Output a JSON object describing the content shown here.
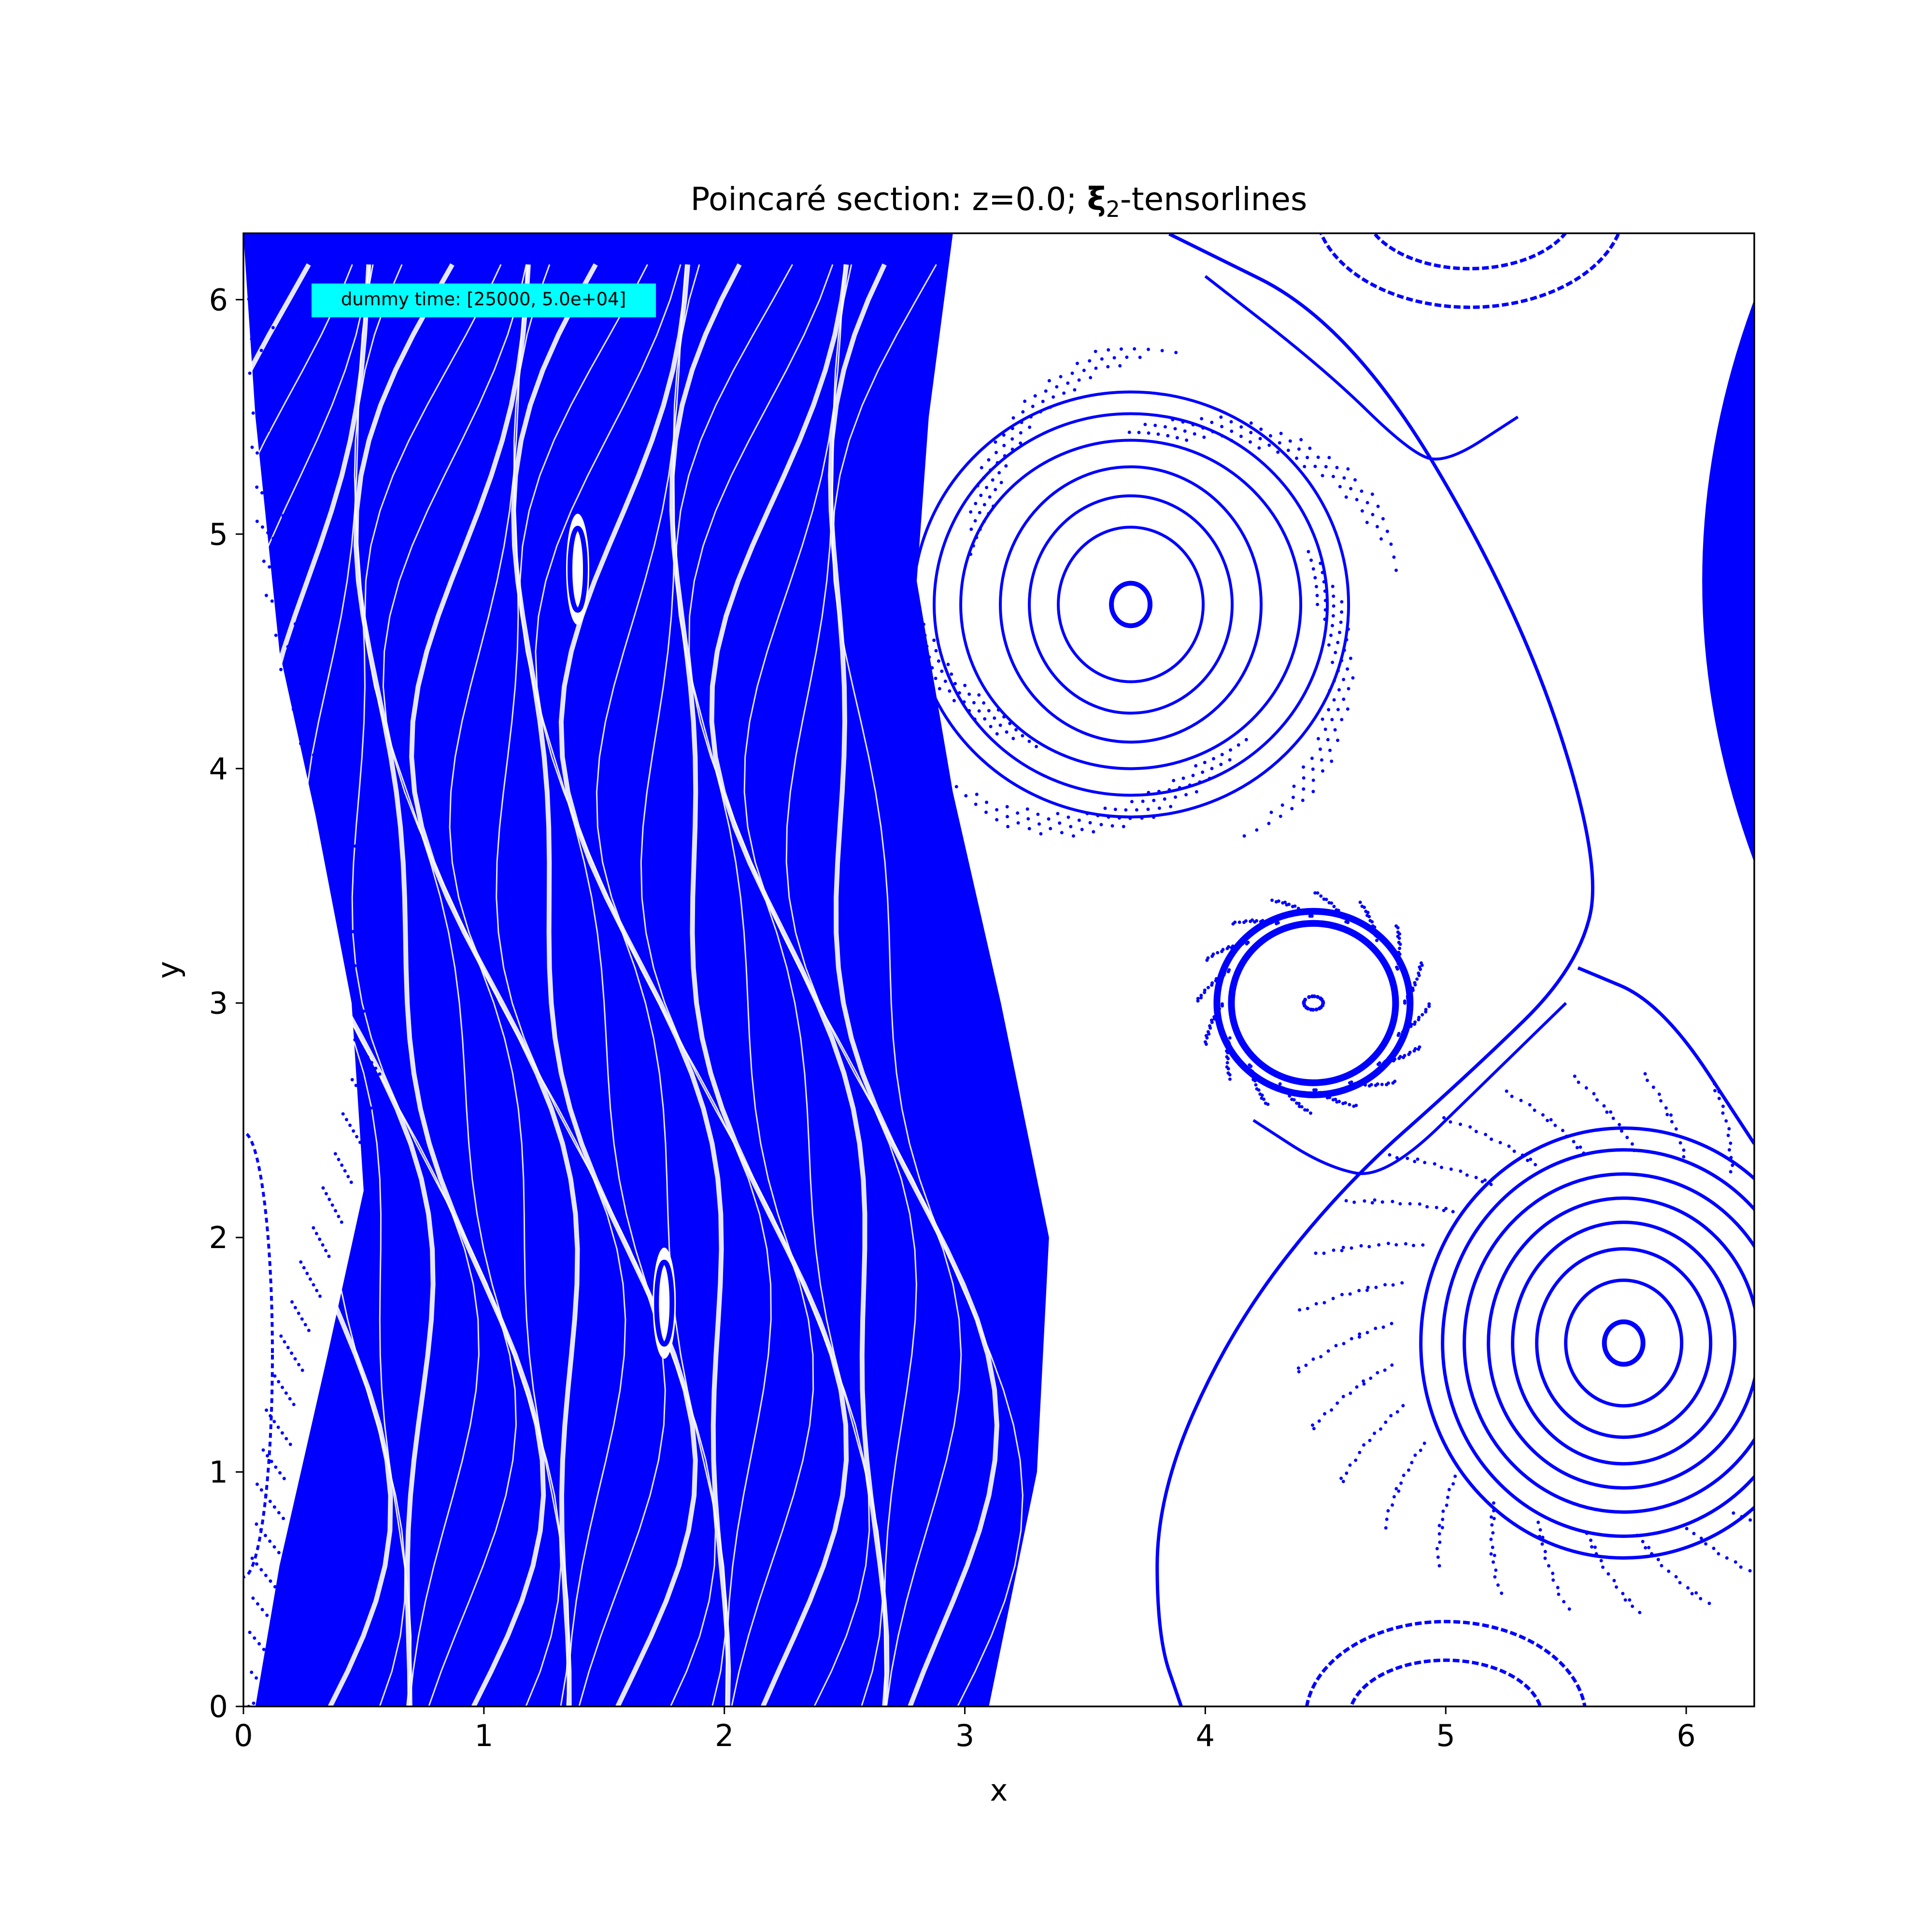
{
  "figure": {
    "title_prefix": "Poincaré section: z=0.0; ",
    "title_symbol": "ξ",
    "title_subscript": "2",
    "title_suffix": "-tensorlines",
    "xlabel": "x",
    "ylabel": "y",
    "annotation": "dummy time: [25000, 5.0e+04]",
    "annotation_bg": "#00ffff",
    "point_color": "#0000ff"
  },
  "chart_data": {
    "type": "scatter",
    "title": "Poincaré section: z=0.0; ξ2-tensorlines",
    "xlabel": "x",
    "ylabel": "y",
    "xlim": [
      0,
      6.283
    ],
    "ylim": [
      0,
      6.283
    ],
    "xticks": [
      "0",
      "1",
      "2",
      "3",
      "4",
      "5",
      "6"
    ],
    "yticks": [
      "0",
      "1",
      "2",
      "3",
      "4",
      "5",
      "6"
    ],
    "grid": false,
    "legend": "none",
    "series": [
      {
        "color": "#0000ff",
        "features": {
          "chaotic_band_left_edge": [
            [
              0.0,
              6.28
            ],
            [
              0.05,
              5.5
            ],
            [
              0.15,
              4.5
            ],
            [
              0.3,
              3.8
            ],
            [
              0.45,
              3.0
            ],
            [
              0.5,
              2.2
            ],
            [
              0.35,
              1.5
            ],
            [
              0.15,
              0.6
            ],
            [
              0.05,
              0.0
            ]
          ],
          "chaotic_band_right_edge": [
            [
              2.95,
              6.28
            ],
            [
              2.85,
              5.5
            ],
            [
              2.8,
              4.8
            ],
            [
              2.95,
              3.9
            ],
            [
              3.15,
              3.0
            ],
            [
              3.35,
              2.0
            ],
            [
              3.3,
              1.0
            ],
            [
              3.1,
              0.0
            ]
          ],
          "island_chain_centers": [
            [
              1.39,
              4.85
            ],
            [
              1.75,
              1.72
            ]
          ],
          "elliptic_island_centers": [
            [
              3.69,
              4.7
            ],
            [
              5.74,
              1.55
            ],
            [
              4.45,
              3.0
            ]
          ],
          "separatrix": [
            [
              3.85,
              6.28
            ],
            [
              4.6,
              5.9
            ],
            [
              5.3,
              4.7
            ],
            [
              5.65,
              3.6
            ],
            [
              5.55,
              3.15
            ],
            [
              5.1,
              2.7
            ],
            [
              4.55,
              2.2
            ],
            [
              4.1,
              1.6
            ],
            [
              3.8,
              0.9
            ],
            [
              3.8,
              0.3
            ],
            [
              3.9,
              0.0
            ]
          ],
          "separatrix_upper_right": [
            [
              5.55,
              3.15
            ],
            [
              5.9,
              3.0
            ],
            [
              6.283,
              2.4
            ]
          ]
        }
      }
    ]
  }
}
